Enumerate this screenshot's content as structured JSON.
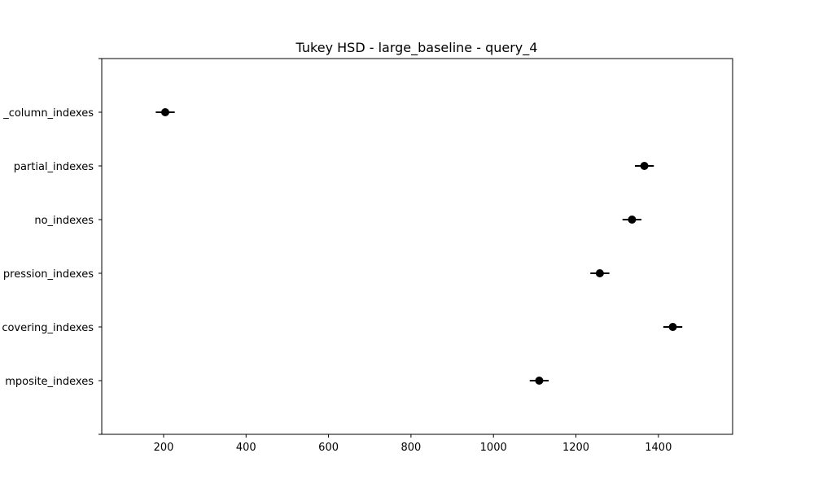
{
  "chart_data": {
    "type": "scatter",
    "title": "Tukey HSD - large_baseline - query_4",
    "xlabel": "",
    "ylabel": "",
    "xlim": [
      50,
      1580
    ],
    "x_ticks": [
      200,
      400,
      600,
      800,
      1000,
      1200,
      1400
    ],
    "x_tick_labels": [
      "200",
      "400",
      "600",
      "800",
      "1000",
      "1200",
      "1400"
    ],
    "categories_top_to_bottom": [
      "_column_indexes",
      "partial_indexes",
      "no_indexes",
      "pression_indexes",
      "covering_indexes",
      "mposite_indexes"
    ],
    "points": [
      {
        "category": "_column_indexes",
        "mean": 204,
        "lower": 181,
        "upper": 227
      },
      {
        "category": "partial_indexes",
        "mean": 1366,
        "lower": 1343,
        "upper": 1389
      },
      {
        "category": "no_indexes",
        "mean": 1336,
        "lower": 1313,
        "upper": 1359
      },
      {
        "category": "pression_indexes",
        "mean": 1258,
        "lower": 1235,
        "upper": 1281
      },
      {
        "category": "covering_indexes",
        "mean": 1435,
        "lower": 1412,
        "upper": 1458
      },
      {
        "category": "mposite_indexes",
        "mean": 1111,
        "lower": 1088,
        "upper": 1134
      }
    ],
    "grid": false,
    "color": "#000000"
  }
}
